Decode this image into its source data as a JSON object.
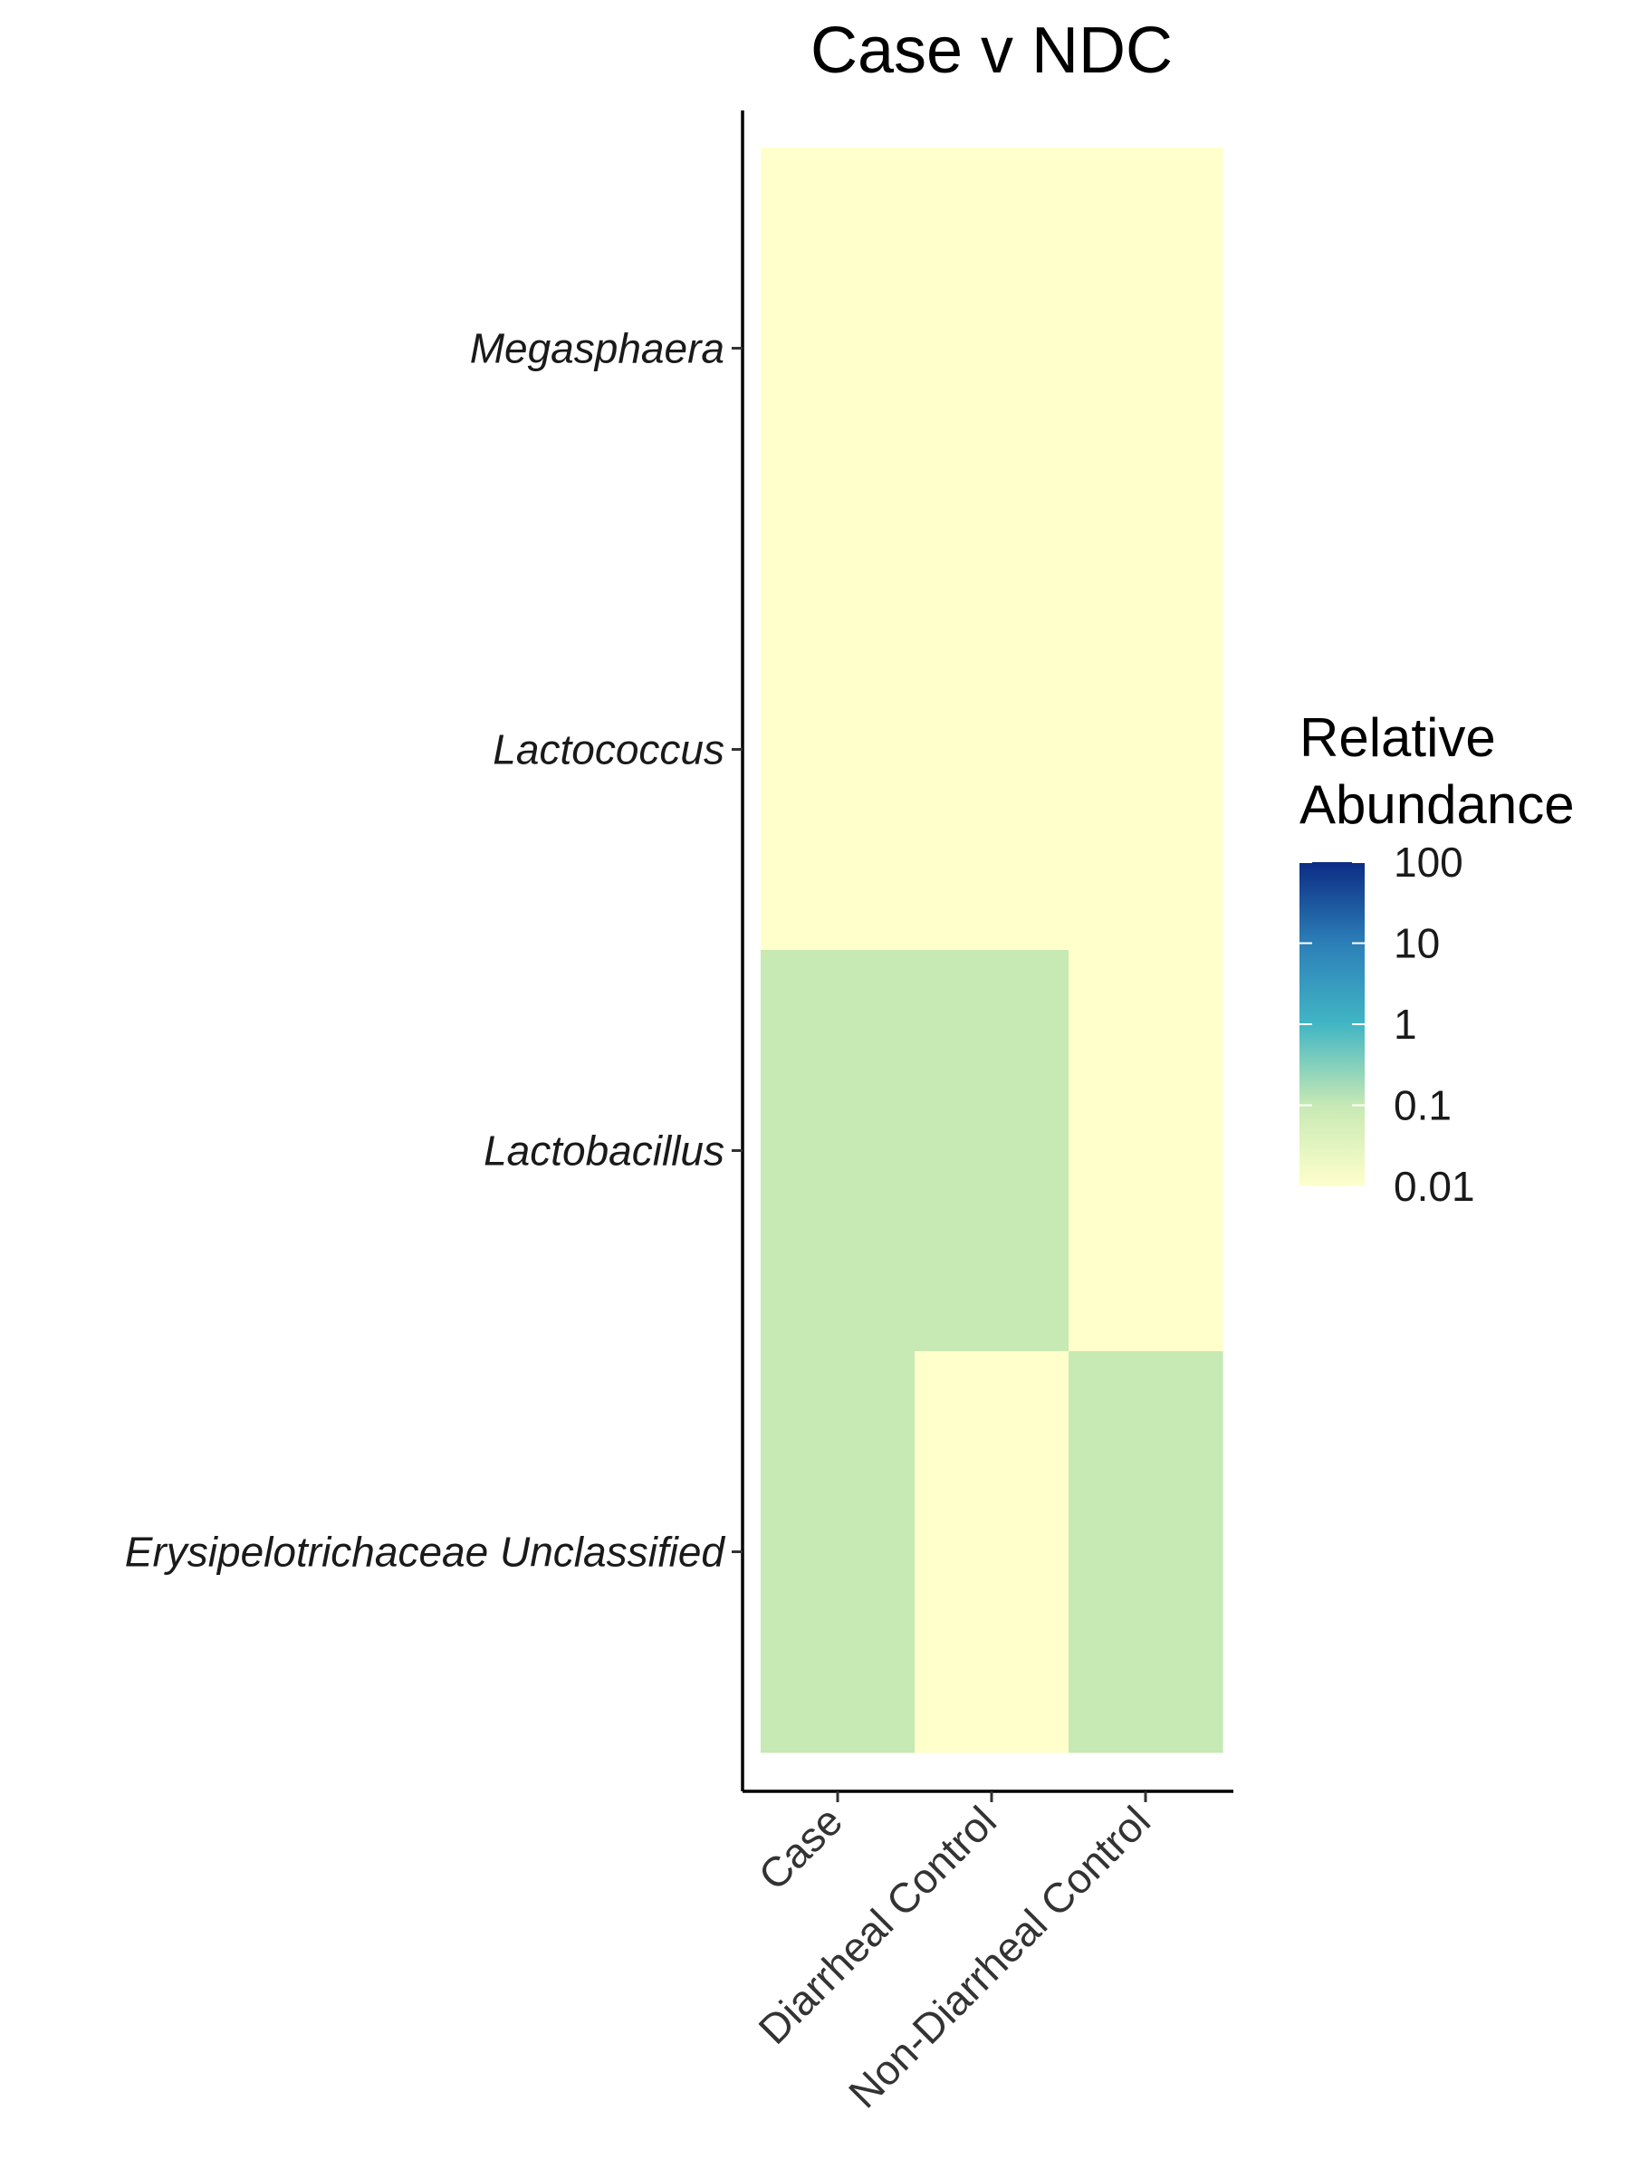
{
  "chart_data": {
    "type": "heatmap",
    "title": "Case v NDC",
    "xlabel": "",
    "ylabel": "",
    "x_categories": [
      "Case",
      "Diarrheal Control",
      "Non-Diarrheal Control"
    ],
    "y_categories": [
      "Megasphaera",
      "Lactococcus",
      "Lactobacillus",
      "Erysipelotrichaceae Unclassified"
    ],
    "values": [
      [
        0.01,
        0.01,
        0.01
      ],
      [
        0.01,
        0.01,
        0.01
      ],
      [
        0.1,
        0.1,
        0.01
      ],
      [
        0.1,
        0.01,
        0.1
      ]
    ],
    "color_scale": {
      "type": "log10",
      "palette": "YlGnBu",
      "stops": [
        {
          "value": 0.01,
          "color": "#ffffcc"
        },
        {
          "value": 0.1,
          "color": "#c7e9b4"
        },
        {
          "value": 1,
          "color": "#41b6c4"
        },
        {
          "value": 10,
          "color": "#2c7fb8"
        },
        {
          "value": 100,
          "color": "#0c2c84"
        }
      ]
    },
    "legend": {
      "title_lines": [
        "Relative",
        "Abundance"
      ],
      "tick_labels": [
        "100",
        "10",
        "1",
        "0.1",
        "0.01"
      ],
      "position": "right"
    },
    "grid": false
  }
}
